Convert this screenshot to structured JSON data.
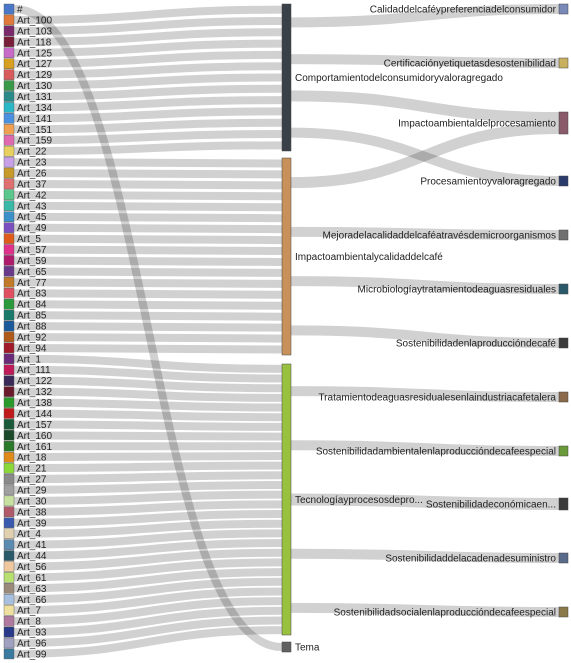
{
  "chart_data": {
    "type": "sankey",
    "left_nodes": [
      {
        "label": "#",
        "color": "#4a78c8"
      },
      {
        "label": "Art_100",
        "color": "#e07a3a"
      },
      {
        "label": "Art_103",
        "color": "#7a2a6a"
      },
      {
        "label": "Art_118",
        "color": "#7a1f3a"
      },
      {
        "label": "Art_125",
        "color": "#c86ac8"
      },
      {
        "label": "Art_127",
        "color": "#d8a020"
      },
      {
        "label": "Art_129",
        "color": "#d85a5a"
      },
      {
        "label": "Art_130",
        "color": "#3a9a4a"
      },
      {
        "label": "Art_131",
        "color": "#2a8a8a"
      },
      {
        "label": "Art_134",
        "color": "#2ab8c8"
      },
      {
        "label": "Art_141",
        "color": "#4a90e0"
      },
      {
        "label": "Art_151",
        "color": "#f0a050"
      },
      {
        "label": "Art_159",
        "color": "#e06ab0"
      },
      {
        "label": "Art_22",
        "color": "#e8d060"
      },
      {
        "label": "Art_23",
        "color": "#c8a0e8"
      },
      {
        "label": "Art_26",
        "color": "#c89a2a"
      },
      {
        "label": "Art_37",
        "color": "#e07070"
      },
      {
        "label": "Art_42",
        "color": "#5ac88a"
      },
      {
        "label": "Art_43",
        "color": "#3ab8a8"
      },
      {
        "label": "Art_45",
        "color": "#3a90c8"
      },
      {
        "label": "Art_49",
        "color": "#7a50c0"
      },
      {
        "label": "Art_5",
        "color": "#e05a1a"
      },
      {
        "label": "Art_57",
        "color": "#e0308a"
      },
      {
        "label": "Art_59",
        "color": "#b01a6a"
      },
      {
        "label": "Art_65",
        "color": "#6a3a8a"
      },
      {
        "label": "Art_77",
        "color": "#c07a2a"
      },
      {
        "label": "Art_83",
        "color": "#e05060"
      },
      {
        "label": "Art_84",
        "color": "#2a9a3a"
      },
      {
        "label": "Art_85",
        "color": "#1a7a6a"
      },
      {
        "label": "Art_88",
        "color": "#1a5a9a"
      },
      {
        "label": "Art_92",
        "color": "#b05a1a"
      },
      {
        "label": "Art_94",
        "color": "#a01a2a"
      },
      {
        "label": "Art_1",
        "color": "#6a2a7a"
      },
      {
        "label": "Art_111",
        "color": "#c01a5a"
      },
      {
        "label": "Art_122",
        "color": "#3a2a5a"
      },
      {
        "label": "Art_132",
        "color": "#6a1a2a"
      },
      {
        "label": "Art_138",
        "color": "#2a9a2a"
      },
      {
        "label": "Art_144",
        "color": "#c01a1a"
      },
      {
        "label": "Art_157",
        "color": "#1a5a3a"
      },
      {
        "label": "Art_160",
        "color": "#1a4a2a"
      },
      {
        "label": "Art_161",
        "color": "#2a7a2a"
      },
      {
        "label": "Art_18",
        "color": "#e08a1a"
      },
      {
        "label": "Art_21",
        "color": "#8ad83a"
      },
      {
        "label": "Art_27",
        "color": "#8a8a8a"
      },
      {
        "label": "Art_29",
        "color": "#a0a0a0"
      },
      {
        "label": "Art_30",
        "color": "#c8e0a0"
      },
      {
        "label": "Art_38",
        "color": "#b05a6a"
      },
      {
        "label": "Art_39",
        "color": "#3a5ab0"
      },
      {
        "label": "Art_4",
        "color": "#e0d0b0"
      },
      {
        "label": "Art_41",
        "color": "#5a8ab0"
      },
      {
        "label": "Art_44",
        "color": "#2a5a6a"
      },
      {
        "label": "Art_56",
        "color": "#f0c8a0"
      },
      {
        "label": "Art_61",
        "color": "#b8e070"
      },
      {
        "label": "Art_63",
        "color": "#9a8a7a"
      },
      {
        "label": "Art_66",
        "color": "#a8c0e0"
      },
      {
        "label": "Art_7",
        "color": "#f0e0a0"
      },
      {
        "label": "Art_8",
        "color": "#b07aa0"
      },
      {
        "label": "Art_93",
        "color": "#2a3a8a"
      },
      {
        "label": "Art_96",
        "color": "#a0a0c0"
      },
      {
        "label": "Art_99",
        "color": "#3a7aa0"
      }
    ],
    "middle_nodes": [
      {
        "label": "Comportamientodelconsumidoryvaloragregado",
        "color": "#3a4048"
      },
      {
        "label": "Impactoambientalycalidaddelcafé",
        "color": "#c8905a"
      },
      {
        "label": "Tecnologíayprocesosdepro...",
        "color": "#9ac040"
      },
      {
        "label": "Tema",
        "color": "#606060"
      }
    ],
    "right_nodes": [
      {
        "label": "Calidaddelcaféypreferenciadelconsumidor",
        "color": "#7a8ab8"
      },
      {
        "label": "Certificaciónyetiquetasdesostenibilidad",
        "color": "#c8b060"
      },
      {
        "label": "Impactoambientaldelprocesamiento",
        "color": "#8a5a6a"
      },
      {
        "label": "Procesamientoyvaloragregado",
        "color": "#2a3a6a"
      },
      {
        "label": "Mejoradelacalidaddelcaféatravésdemicroorganismos",
        "color": "#707070"
      },
      {
        "label": "Microbiologíaytratamientodeaguasresiduales",
        "color": "#2a5a6a"
      },
      {
        "label": "Sostenibilidadenlaproduccióndecafé",
        "color": "#3a3a3a"
      },
      {
        "label": "Tratamientodeaguasresidualesenlaindustriacafetalera",
        "color": "#8a6a4a"
      },
      {
        "label": "Sostenibilidadambientalenlaproduccióndecafeespecial",
        "color": "#6a9a3a"
      },
      {
        "label": "Sostenibilidadeconómicaen...",
        "color": "#3a3a3a"
      },
      {
        "label": "Sostenibilidaddelacadenadesuministro",
        "color": "#5a6a8a"
      },
      {
        "label": "Sostenibilidadsocialenlaproduccióndecafeespecial",
        "color": "#8a7a4a"
      }
    ],
    "links_left_to_middle": [
      [
        0,
        3
      ],
      [
        1,
        0
      ],
      [
        2,
        0
      ],
      [
        3,
        0
      ],
      [
        4,
        0
      ],
      [
        5,
        0
      ],
      [
        6,
        0
      ],
      [
        7,
        0
      ],
      [
        8,
        0
      ],
      [
        9,
        0
      ],
      [
        10,
        0
      ],
      [
        11,
        0
      ],
      [
        12,
        0
      ],
      [
        13,
        0
      ],
      [
        14,
        1
      ],
      [
        15,
        1
      ],
      [
        16,
        1
      ],
      [
        17,
        1
      ],
      [
        18,
        1
      ],
      [
        19,
        1
      ],
      [
        20,
        1
      ],
      [
        21,
        1
      ],
      [
        22,
        1
      ],
      [
        23,
        1
      ],
      [
        24,
        1
      ],
      [
        25,
        1
      ],
      [
        26,
        1
      ],
      [
        27,
        1
      ],
      [
        28,
        1
      ],
      [
        29,
        1
      ],
      [
        30,
        1
      ],
      [
        31,
        1
      ],
      [
        32,
        2
      ],
      [
        33,
        2
      ],
      [
        34,
        2
      ],
      [
        35,
        2
      ],
      [
        36,
        2
      ],
      [
        37,
        2
      ],
      [
        38,
        2
      ],
      [
        39,
        2
      ],
      [
        40,
        2
      ],
      [
        41,
        2
      ],
      [
        42,
        2
      ],
      [
        43,
        2
      ],
      [
        44,
        2
      ],
      [
        45,
        2
      ],
      [
        46,
        2
      ],
      [
        47,
        2
      ],
      [
        48,
        2
      ],
      [
        49,
        2
      ],
      [
        50,
        2
      ],
      [
        51,
        2
      ],
      [
        52,
        2
      ],
      [
        53,
        2
      ],
      [
        54,
        2
      ],
      [
        55,
        2
      ],
      [
        56,
        2
      ],
      [
        57,
        2
      ],
      [
        58,
        2
      ],
      [
        59,
        2
      ]
    ],
    "links_middle_to_right": [
      [
        0,
        0
      ],
      [
        0,
        1
      ],
      [
        0,
        2
      ],
      [
        0,
        3
      ],
      [
        1,
        4
      ],
      [
        1,
        5
      ],
      [
        1,
        6
      ],
      [
        1,
        2
      ],
      [
        2,
        7
      ],
      [
        2,
        8
      ],
      [
        2,
        9
      ],
      [
        2,
        10
      ],
      [
        2,
        11
      ]
    ]
  }
}
